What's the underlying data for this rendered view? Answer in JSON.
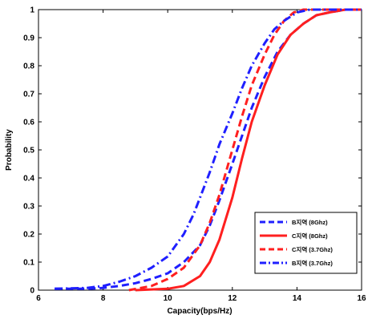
{
  "chart_data": {
    "type": "line",
    "xlabel": "Capacity(bps/Hz)",
    "ylabel": "Probability",
    "xlim": [
      6,
      16
    ],
    "ylim": [
      0,
      1
    ],
    "xticks": [
      "6",
      "8",
      "10",
      "12",
      "14",
      "16"
    ],
    "yticks": [
      "0",
      "0.1",
      "0.2",
      "0.3",
      "0.4",
      "0.5",
      "0.6",
      "0.7",
      "0.8",
      "0.9",
      "1"
    ],
    "grid": false,
    "legend_position": "bottom-right",
    "series": [
      {
        "name": "B지역 (8Ghz)",
        "color": "#1f1fff",
        "style": "dashed",
        "x": [
          6.5,
          7.5,
          8.0,
          8.5,
          9.0,
          9.5,
          10.0,
          10.5,
          11.0,
          11.3,
          11.6,
          12.0,
          12.3,
          12.6,
          13.0,
          13.4,
          13.8,
          14.2,
          14.6,
          15.0,
          15.5,
          16.0
        ],
        "y": [
          0.005,
          0.005,
          0.008,
          0.015,
          0.025,
          0.04,
          0.06,
          0.1,
          0.16,
          0.23,
          0.32,
          0.45,
          0.55,
          0.65,
          0.76,
          0.85,
          0.91,
          0.95,
          0.98,
          0.99,
          1.0,
          1.0
        ]
      },
      {
        "name": "C지역 (8Ghz)",
        "color": "#ff1f1f",
        "style": "solid",
        "x": [
          9.0,
          10.0,
          10.5,
          11.0,
          11.3,
          11.6,
          12.0,
          12.3,
          12.6,
          13.0,
          13.4,
          13.8,
          14.2,
          14.6,
          15.0,
          15.5,
          16.0
        ],
        "y": [
          0.0,
          0.005,
          0.015,
          0.05,
          0.1,
          0.18,
          0.33,
          0.47,
          0.6,
          0.73,
          0.84,
          0.91,
          0.95,
          0.98,
          0.99,
          1.0,
          1.0
        ]
      },
      {
        "name": "C지역 (3.7Ghz)",
        "color": "#ff1f1f",
        "style": "dashed",
        "x": [
          8.8,
          9.5,
          10.0,
          10.5,
          11.0,
          11.3,
          11.6,
          12.0,
          12.3,
          12.6,
          13.0,
          13.3,
          13.6,
          13.9,
          14.2,
          14.6,
          15.0,
          16.0
        ],
        "y": [
          0.0,
          0.015,
          0.04,
          0.08,
          0.16,
          0.24,
          0.34,
          0.5,
          0.62,
          0.73,
          0.84,
          0.91,
          0.96,
          0.99,
          1.0,
          1.0,
          1.0,
          1.0
        ]
      },
      {
        "name": "B지역 (3.7Ghz)",
        "color": "#1f1fff",
        "style": "dashdot",
        "x": [
          6.5,
          7.5,
          8.0,
          8.5,
          9.0,
          9.5,
          10.0,
          10.5,
          10.8,
          11.0,
          11.3,
          11.6,
          12.0,
          12.3,
          12.6,
          13.0,
          13.3,
          13.6,
          14.0,
          14.4,
          14.8,
          15.5,
          16.0
        ],
        "y": [
          0.005,
          0.008,
          0.015,
          0.03,
          0.05,
          0.08,
          0.12,
          0.2,
          0.27,
          0.33,
          0.42,
          0.52,
          0.63,
          0.72,
          0.8,
          0.88,
          0.93,
          0.96,
          0.99,
          1.0,
          1.0,
          1.0,
          1.0
        ]
      }
    ]
  }
}
